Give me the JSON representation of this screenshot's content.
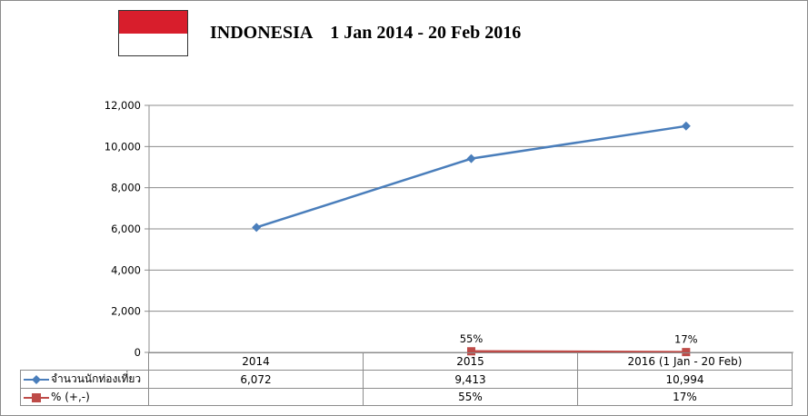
{
  "title": {
    "country": "INDONESIA",
    "period": "1 Jan 2014 - 20 Feb 2016"
  },
  "flag": {
    "top_color": "#d81e2c",
    "bottom_color": "#ffffff"
  },
  "chart_data": {
    "type": "line",
    "categories": [
      "2014",
      "2015",
      "2016 (1 Jan - 20 Feb)"
    ],
    "ylim": [
      0,
      12000
    ],
    "yticks": [
      0,
      2000,
      4000,
      6000,
      8000,
      10000,
      12000
    ],
    "ytick_labels": [
      "0",
      "2,000",
      "4,000",
      "6,000",
      "8,000",
      "10,000",
      "12,000"
    ],
    "grid": true,
    "legend": "data-table",
    "series": [
      {
        "name": "จำนวนนักท่องเที่ยว",
        "values": [
          6072,
          9413,
          10994
        ],
        "display": [
          "6,072",
          "9,413",
          "10,994"
        ],
        "color": "#4a7ebb",
        "marker": "diamond"
      },
      {
        "name": "% (+,-)",
        "values": [
          null,
          55,
          17
        ],
        "display": [
          "",
          "55%",
          "17%"
        ],
        "color": "#be4b48",
        "marker": "square"
      }
    ]
  }
}
